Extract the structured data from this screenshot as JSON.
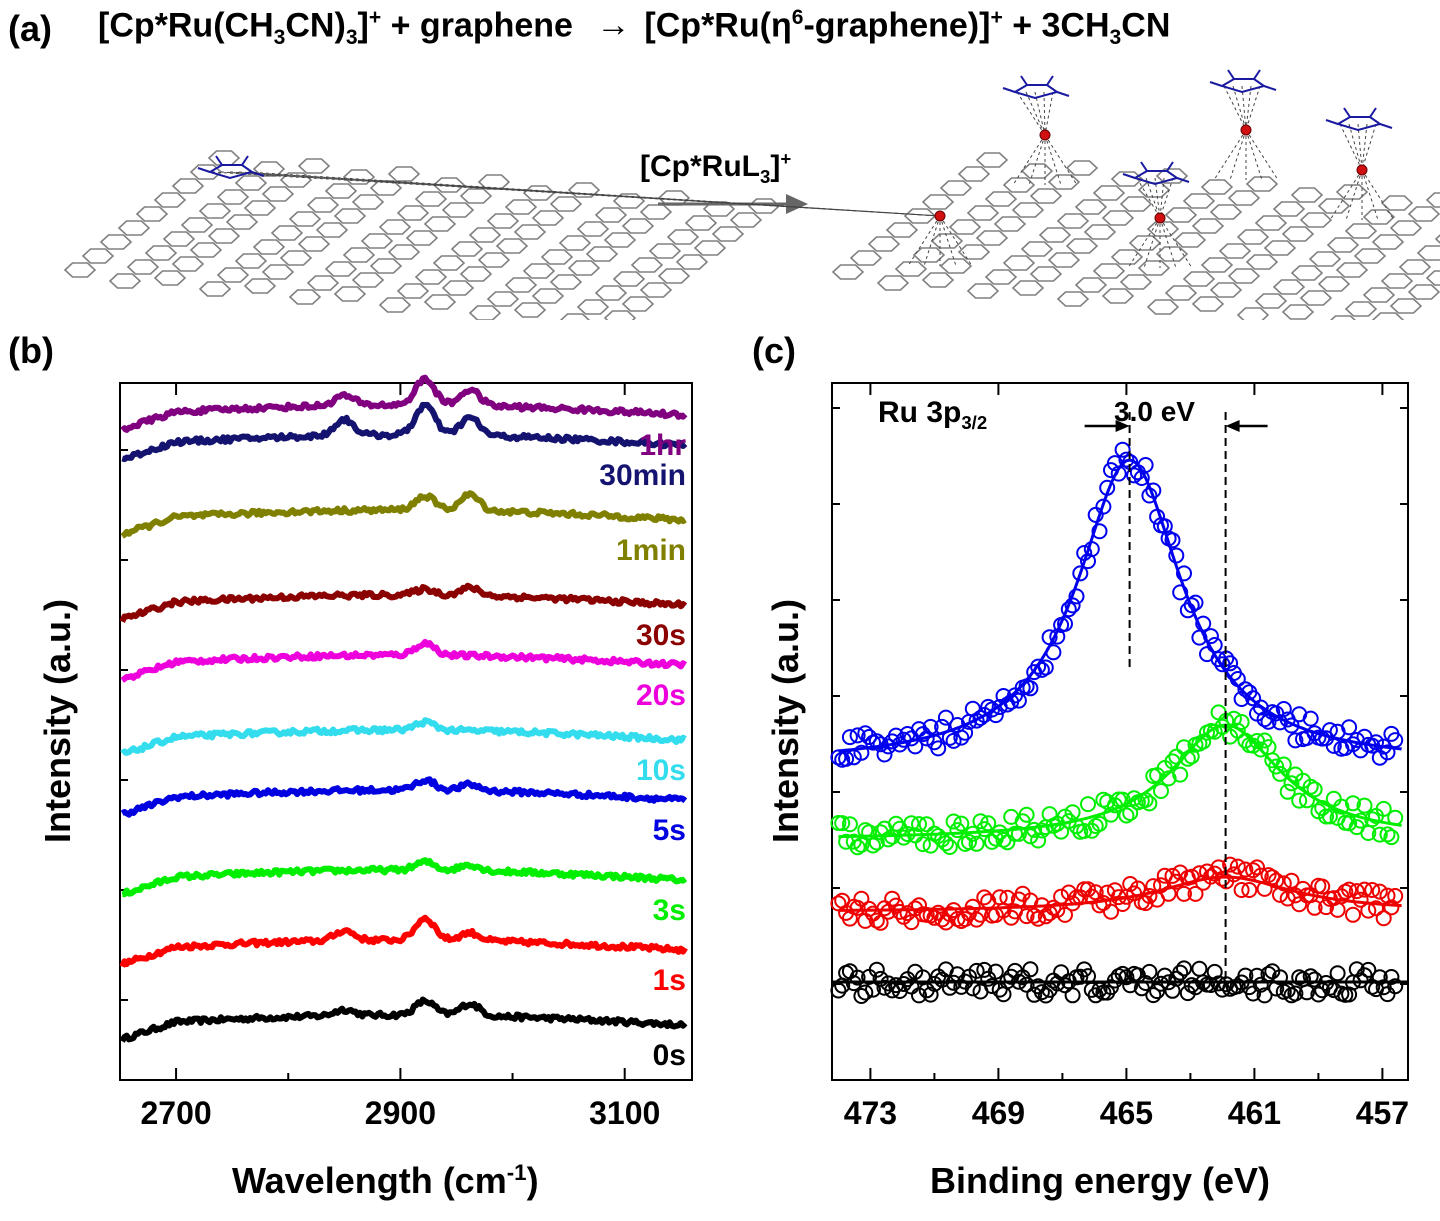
{
  "panel_a": {
    "label": "(a)",
    "equation": {
      "reactant": "[Cp*Ru(CH",
      "sub1": "3",
      "mid1": "CN)",
      "sub2": "3",
      "close1": "]",
      "sup1": "+",
      "plus_graphene": " + graphene ",
      "arrow": "→",
      "product": "[Cp*Ru(η",
      "sup2": "6",
      "product_rest": "-graphene)]",
      "sup3": "+",
      "plus": " + 3CH",
      "sub3": "3",
      "tail": "CN"
    },
    "reagent": {
      "text": "[Cp*RuL",
      "sub": "3",
      "close": "]",
      "sup": "+"
    },
    "colors": {
      "lattice": "#808080",
      "cp_ring": "#1a1aa0",
      "ru_atom": "#d01010"
    }
  },
  "chart_data": [
    {
      "panel": "(b)",
      "type": "line",
      "xlabel": "Wavelength (cm",
      "xlabel_sup": "-1",
      "xlabel_close": ")",
      "ylabel": "Intensity (a.u.)",
      "xlim": [
        2650,
        3160
      ],
      "xticks": [
        2700,
        2900,
        3100
      ],
      "series": [
        {
          "name": "0s",
          "color": "#000000",
          "offset": 0,
          "peaks": [
            [
              2850,
              6
            ],
            [
              2922,
              14
            ],
            [
              2962,
              12
            ]
          ]
        },
        {
          "name": "1s",
          "color": "#ff0000",
          "offset": 75,
          "peaks": [
            [
              2850,
              10
            ],
            [
              2922,
              22
            ],
            [
              2962,
              8
            ]
          ]
        },
        {
          "name": "3s",
          "color": "#00ee00",
          "offset": 145,
          "peaks": [
            [
              2922,
              8
            ],
            [
              2962,
              6
            ]
          ]
        },
        {
          "name": "5s",
          "color": "#0000e0",
          "offset": 225,
          "peaks": [
            [
              2922,
              10
            ],
            [
              2962,
              6
            ]
          ]
        },
        {
          "name": "10s",
          "color": "#33ddee",
          "offset": 285,
          "peaks": [
            [
              2922,
              8
            ]
          ]
        },
        {
          "name": "20s",
          "color": "#ee00dd",
          "offset": 360,
          "peaks": [
            [
              2922,
              12
            ]
          ]
        },
        {
          "name": "30s",
          "color": "#8b0000",
          "offset": 420,
          "peaks": [
            [
              2922,
              6
            ],
            [
              2962,
              8
            ]
          ]
        },
        {
          "name": "1min",
          "color": "#808000",
          "offset": 505,
          "peaks": [
            [
              2922,
              14
            ],
            [
              2962,
              16
            ]
          ]
        },
        {
          "name": "30min",
          "color": "#141470",
          "offset": 580,
          "peaks": [
            [
              2850,
              16
            ],
            [
              2922,
              30
            ],
            [
              2962,
              18
            ]
          ]
        },
        {
          "name": "1hr",
          "color": "#800080",
          "offset": 610,
          "peaks": [
            [
              2850,
              10
            ],
            [
              2922,
              26
            ],
            [
              2962,
              16
            ]
          ]
        }
      ]
    },
    {
      "panel": "(c)",
      "type": "scatter",
      "annotation": "Ru 3p",
      "annotation_sub": "3/2",
      "shift_label": "3.0 eV",
      "xlabel": "Binding energy (eV)",
      "ylabel": "Intensity (a.u.)",
      "xlim": [
        474.2,
        456.2
      ],
      "xticks": [
        473,
        469,
        465,
        461,
        457
      ],
      "peak_positions": [
        464.9,
        461.9
      ],
      "series": [
        {
          "name": "blue",
          "color": "#0000ee",
          "baseline": 0,
          "center": 464.9,
          "amplitude": 305,
          "width": 2.0
        },
        {
          "name": "green",
          "color": "#00ee00",
          "baseline": 0,
          "center": 461.9,
          "amplitude": 115,
          "width": 2.1
        },
        {
          "name": "red",
          "color": "#ee0000",
          "baseline": 0,
          "center": 461.9,
          "amplitude": 35,
          "width": 2.6
        },
        {
          "name": "black",
          "color": "#000000",
          "baseline": 0,
          "center": 463.0,
          "amplitude": 0,
          "width": 2.0
        }
      ]
    }
  ]
}
